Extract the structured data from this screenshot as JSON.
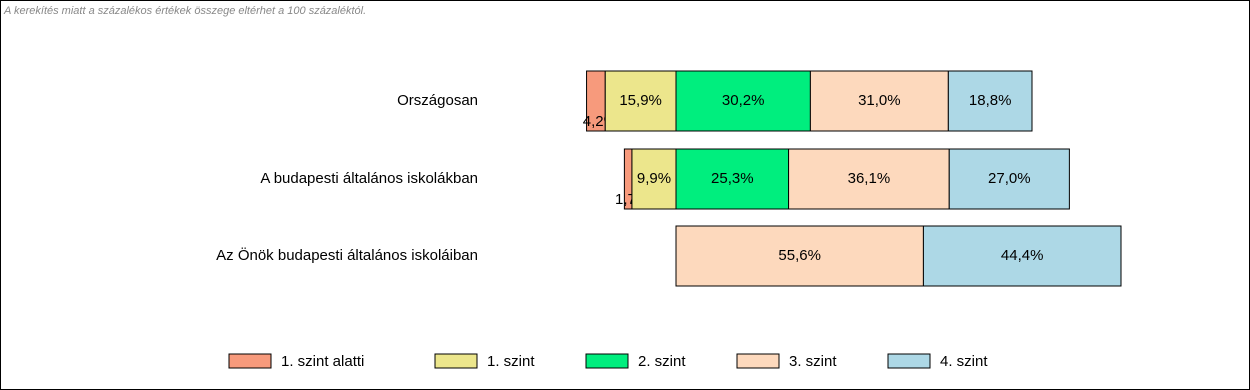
{
  "chart_data": {
    "type": "diverging-bar",
    "note": "A kerekítés miatt a  százalékos értékek összege eltérhet a 100 százaléktól.",
    "categories": [
      "Országosan",
      "A budapesti általános iskolákban",
      "Az Önök budapesti általános iskoláiban"
    ],
    "series": [
      {
        "name": "1. szint alatti",
        "color": "#f79a7c",
        "values": [
          4.2,
          1.7,
          null
        ],
        "value_labels": [
          "4,2%",
          "1,7%",
          null
        ]
      },
      {
        "name": "1. szint",
        "color": "#ece68c",
        "values": [
          15.9,
          9.9,
          null
        ],
        "value_labels": [
          "15,9%",
          "9,9%",
          null
        ]
      },
      {
        "name": "2. szint",
        "color": "#00ee7e",
        "values": [
          30.2,
          25.3,
          null
        ],
        "value_labels": [
          "30,2%",
          "25,3%",
          null
        ]
      },
      {
        "name": "3. szint",
        "color": "#fdd9bd",
        "values": [
          31.0,
          36.1,
          55.6
        ],
        "value_labels": [
          "31,0%",
          "36,1%",
          "55,6%"
        ]
      },
      {
        "name": "4. szint",
        "color": "#add8e6",
        "values": [
          18.8,
          27.0,
          44.4
        ],
        "value_labels": [
          "18,8%",
          "27,0%",
          "44,4%"
        ]
      }
    ]
  }
}
